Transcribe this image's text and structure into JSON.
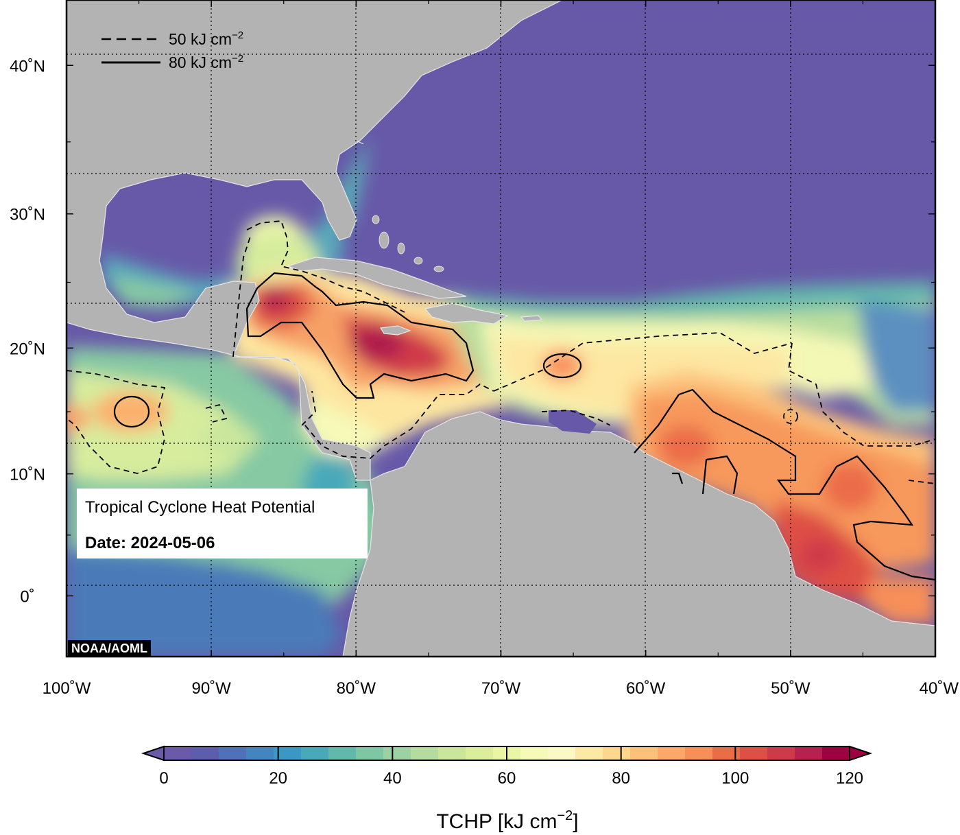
{
  "map": {
    "title": "Tropical Cyclone Heat Potential",
    "date_label": "Date: 2024-05-06",
    "credit": "NOAA/AOML",
    "lon_range": [
      -100,
      -40
    ],
    "lat_range": [
      -5,
      44
    ],
    "lon_ticks": [
      {
        "value": -100,
        "label": "100˚W"
      },
      {
        "value": -90,
        "label": "90˚W"
      },
      {
        "value": -80,
        "label": "80˚W"
      },
      {
        "value": -70,
        "label": "70˚W"
      },
      {
        "value": -60,
        "label": "60˚W"
      },
      {
        "value": -50,
        "label": "50˚W"
      },
      {
        "value": -40,
        "label": "40˚W"
      }
    ],
    "lat_ticks": [
      {
        "value": 40,
        "label": "40˚N"
      },
      {
        "value": 30,
        "label": "30˚N"
      },
      {
        "value": 20,
        "label": "20˚N"
      },
      {
        "value": 10,
        "label": "10˚N"
      },
      {
        "value": 0,
        "label": "0˚"
      }
    ],
    "gridlines": "dotted",
    "land_color": "#b3b3b3",
    "coastline_color": "#ffffff"
  },
  "legend": {
    "items": [
      {
        "style": "dashed",
        "label": "50 kJ cm",
        "exponent": "−2"
      },
      {
        "style": "solid",
        "label": "80 kJ cm",
        "exponent": "−2"
      }
    ]
  },
  "colorbar": {
    "title": "TCHP [kJ cm",
    "title_exponent": "−2",
    "title_close": "]",
    "min": 0,
    "max": 120,
    "step": 5,
    "extend": "both",
    "ticks": [
      {
        "value": 0,
        "label": "0"
      },
      {
        "value": 20,
        "label": "20"
      },
      {
        "value": 40,
        "label": "40"
      },
      {
        "value": 60,
        "label": "60"
      },
      {
        "value": 80,
        "label": "80"
      },
      {
        "value": 100,
        "label": "100"
      },
      {
        "value": 120,
        "label": "120"
      }
    ],
    "colors": [
      "#6a5aa8",
      "#5d5eab",
      "#4f71b5",
      "#4584bd",
      "#3c98c2",
      "#4aa9b9",
      "#63b8ac",
      "#7fc6a4",
      "#9cd2a1",
      "#b4dc9f",
      "#cae69c",
      "#dbee9e",
      "#eaf6a6",
      "#f5fab8",
      "#fdf9c6",
      "#fde9a6",
      "#fdd78e",
      "#fcc27c",
      "#fba86a",
      "#f68f58",
      "#eb6c48",
      "#de5045",
      "#cf3a4a",
      "#b8204f",
      "#9e0142"
    ]
  },
  "chart_data": {
    "type": "heatmap",
    "variable": "TCHP",
    "units": "kJ cm−2",
    "contour_levels": [
      50,
      80
    ],
    "regions": [
      {
        "area": "Gulf of Mexico (north/central)",
        "tchp": 5
      },
      {
        "area": "Western Atlantic north of 22N",
        "tchp": 0
      },
      {
        "area": "Caribbean south of Jamaica",
        "tchp": 110
      },
      {
        "area": "Yucatan Channel / NW Caribbean",
        "tchp": 105
      },
      {
        "area": "Central Caribbean",
        "tchp": 80
      },
      {
        "area": "Tropical Atlantic 10-20N",
        "tchp": 60
      },
      {
        "area": "Atlantic off Guianas / Amazon plume",
        "tchp": 95
      },
      {
        "area": "Eastern Pacific 5-15N",
        "tchp": 45
      },
      {
        "area": "Eastern Pacific south of 5N",
        "tchp": 5
      }
    ]
  }
}
